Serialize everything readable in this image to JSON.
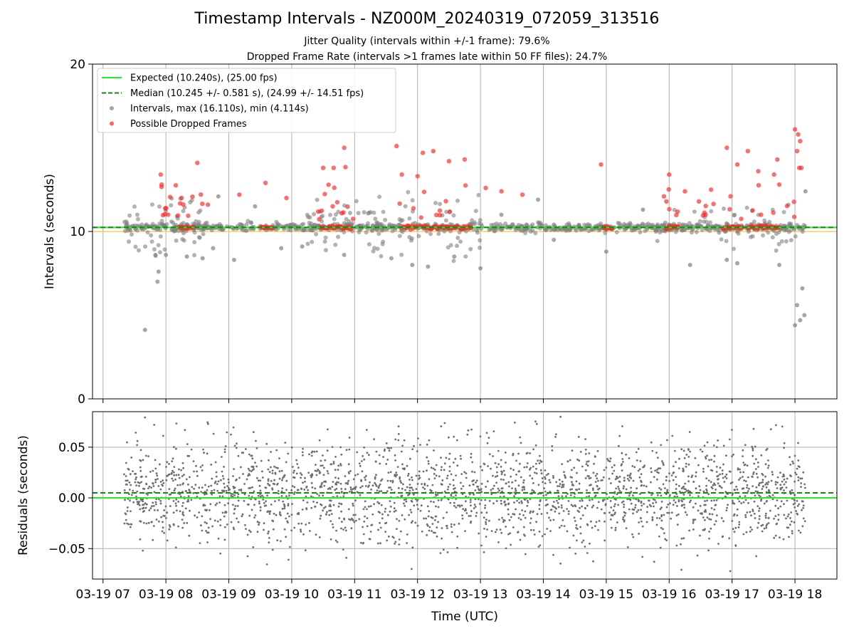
{
  "chart_data": [
    {
      "type": "scatter",
      "title": "Timestamp Intervals - NZ000M_20240319_072059_313516",
      "subtitle_lines": [
        "Jitter Quality (intervals within +/-1 frame): 79.6%",
        "Dropped Frame Rate (intervals >1 frames late within 50 FF files): 24.7%"
      ],
      "ylabel": "Intervals (seconds)",
      "ylim": [
        0,
        20
      ],
      "yticks": [
        "0",
        "10",
        "20"
      ],
      "grid": "vertical",
      "legend_position": "upper-left",
      "expected_value": 10.24,
      "median_value": 10.245,
      "series": [
        {
          "name": "Expected (10.240s), (25.00 fps)",
          "kind": "hline",
          "y": 10.24,
          "color": "#22ee22"
        },
        {
          "name": "Median (10.245 +/- 0.581 s), (24.99 +/- 14.51 fps)",
          "kind": "hline-dashed",
          "y": 10.245,
          "color": "#138a13"
        },
        {
          "name": "Intervals, max (16.110s), min (4.114s)",
          "kind": "scatter",
          "color": "#808080",
          "note_points": [
            {
              "x": "03-19 07:40",
              "y": 4.114
            },
            {
              "x": "03-19 07:52",
              "y": 7.0
            },
            {
              "x": "03-19 07:53",
              "y": 7.6
            },
            {
              "x": "03-19 07:50",
              "y": 8.6
            },
            {
              "x": "03-19 08:00",
              "y": 8.6
            },
            {
              "x": "03-19 08:20",
              "y": 8.5
            },
            {
              "x": "03-19 08:35",
              "y": 8.4
            },
            {
              "x": "03-19 08:45",
              "y": 9.0
            },
            {
              "x": "03-19 08:50",
              "y": 12.1
            },
            {
              "x": "03-19 09:05",
              "y": 8.3
            },
            {
              "x": "03-19 09:25",
              "y": 11.5
            },
            {
              "x": "03-19 09:50",
              "y": 9.0
            },
            {
              "x": "03-19 10:10",
              "y": 9.1
            },
            {
              "x": "03-19 10:50",
              "y": 8.6
            },
            {
              "x": "03-19 11:35",
              "y": 8.4
            },
            {
              "x": "03-19 11:55",
              "y": 8.0
            },
            {
              "x": "03-19 12:10",
              "y": 7.9
            },
            {
              "x": "03-19 12:35",
              "y": 8.5
            },
            {
              "x": "03-19 13:00",
              "y": 7.8
            },
            {
              "x": "03-19 13:20",
              "y": 11.0
            },
            {
              "x": "03-19 13:55",
              "y": 11.9
            },
            {
              "x": "03-19 14:10",
              "y": 9.5
            },
            {
              "x": "03-19 15:00",
              "y": 8.8
            },
            {
              "x": "03-19 15:35",
              "y": 11.3
            },
            {
              "x": "03-19 16:20",
              "y": 8.0
            },
            {
              "x": "03-19 16:55",
              "y": 8.3
            },
            {
              "x": "03-19 17:05",
              "y": 8.1
            },
            {
              "x": "03-19 17:45",
              "y": 8.0
            },
            {
              "x": "03-19 18:00",
              "y": 4.4
            },
            {
              "x": "03-19 18:02",
              "y": 5.6
            },
            {
              "x": "03-19 18:05",
              "y": 4.7
            },
            {
              "x": "03-19 18:07",
              "y": 6.6
            },
            {
              "x": "03-19 18:09",
              "y": 5.0
            },
            {
              "x": "03-19 18:10",
              "y": 12.4
            }
          ]
        },
        {
          "name": "Possible Dropped Frames",
          "kind": "scatter",
          "color": "#ff2020",
          "note_points": [
            {
              "x": "03-19 07:55",
              "y": 13.4
            },
            {
              "x": "03-19 07:56",
              "y": 12.8
            },
            {
              "x": "03-19 08:15",
              "y": 12.0
            },
            {
              "x": "03-19 08:30",
              "y": 14.1
            },
            {
              "x": "03-19 08:40",
              "y": 11.6
            },
            {
              "x": "03-19 09:10",
              "y": 12.2
            },
            {
              "x": "03-19 09:35",
              "y": 12.9
            },
            {
              "x": "03-19 09:55",
              "y": 12.0
            },
            {
              "x": "03-19 10:30",
              "y": 13.8
            },
            {
              "x": "03-19 10:40",
              "y": 13.8
            },
            {
              "x": "03-19 10:50",
              "y": 15.0
            },
            {
              "x": "03-19 11:40",
              "y": 15.1
            },
            {
              "x": "03-19 11:45",
              "y": 13.4
            },
            {
              "x": "03-19 12:00",
              "y": 13.3
            },
            {
              "x": "03-19 12:05",
              "y": 14.7
            },
            {
              "x": "03-19 12:15",
              "y": 14.8
            },
            {
              "x": "03-19 12:30",
              "y": 14.2
            },
            {
              "x": "03-19 12:45",
              "y": 14.3
            },
            {
              "x": "03-19 13:05",
              "y": 12.6
            },
            {
              "x": "03-19 13:20",
              "y": 12.4
            },
            {
              "x": "03-19 13:40",
              "y": 12.2
            },
            {
              "x": "03-19 14:55",
              "y": 14.0
            },
            {
              "x": "03-19 15:55",
              "y": 12.1
            },
            {
              "x": "03-19 16:00",
              "y": 13.4
            },
            {
              "x": "03-19 16:15",
              "y": 12.4
            },
            {
              "x": "03-19 16:40",
              "y": 12.5
            },
            {
              "x": "03-19 16:55",
              "y": 15.0
            },
            {
              "x": "03-19 17:05",
              "y": 14.0
            },
            {
              "x": "03-19 17:15",
              "y": 14.8
            },
            {
              "x": "03-19 17:25",
              "y": 13.6
            },
            {
              "x": "03-19 17:40",
              "y": 13.4
            },
            {
              "x": "03-19 17:45",
              "y": 12.8
            },
            {
              "x": "03-19 18:00",
              "y": 16.1
            },
            {
              "x": "03-19 18:03",
              "y": 15.8
            },
            {
              "x": "03-19 18:05",
              "y": 15.4
            },
            {
              "x": "03-19 18:02",
              "y": 14.8
            },
            {
              "x": "03-19 18:04",
              "y": 13.8
            },
            {
              "x": "03-19 18:06",
              "y": 13.8
            }
          ]
        }
      ]
    },
    {
      "type": "scatter",
      "ylabel": "Residuals (seconds)",
      "xlabel": "Time (UTC)",
      "ylim": [
        -0.08,
        0.085
      ],
      "yticks": [
        "0.05",
        "0.00",
        "−0.05"
      ],
      "x_tick_labels": [
        "03-19 07",
        "03-19 08",
        "03-19 09",
        "03-19 10",
        "03-19 11",
        "03-19 12",
        "03-19 13",
        "03-19 14",
        "03-19 15",
        "03-19 16",
        "03-19 17",
        "03-19 18"
      ],
      "x_range": [
        "03-19 06:50",
        "03-19 18:40"
      ],
      "data_x_range": [
        "03-19 07:20",
        "03-19 18:10"
      ],
      "grid": "both",
      "series": [
        {
          "kind": "hline",
          "y": 0.0,
          "color": "#22ee22"
        },
        {
          "kind": "hline-dashed",
          "y": 0.005,
          "color": "#138a13"
        },
        {
          "kind": "scatter",
          "color": "#6e6e6e",
          "approx_range": [
            -0.075,
            0.08
          ],
          "center": 0.005,
          "spread": 0.025
        }
      ]
    }
  ]
}
